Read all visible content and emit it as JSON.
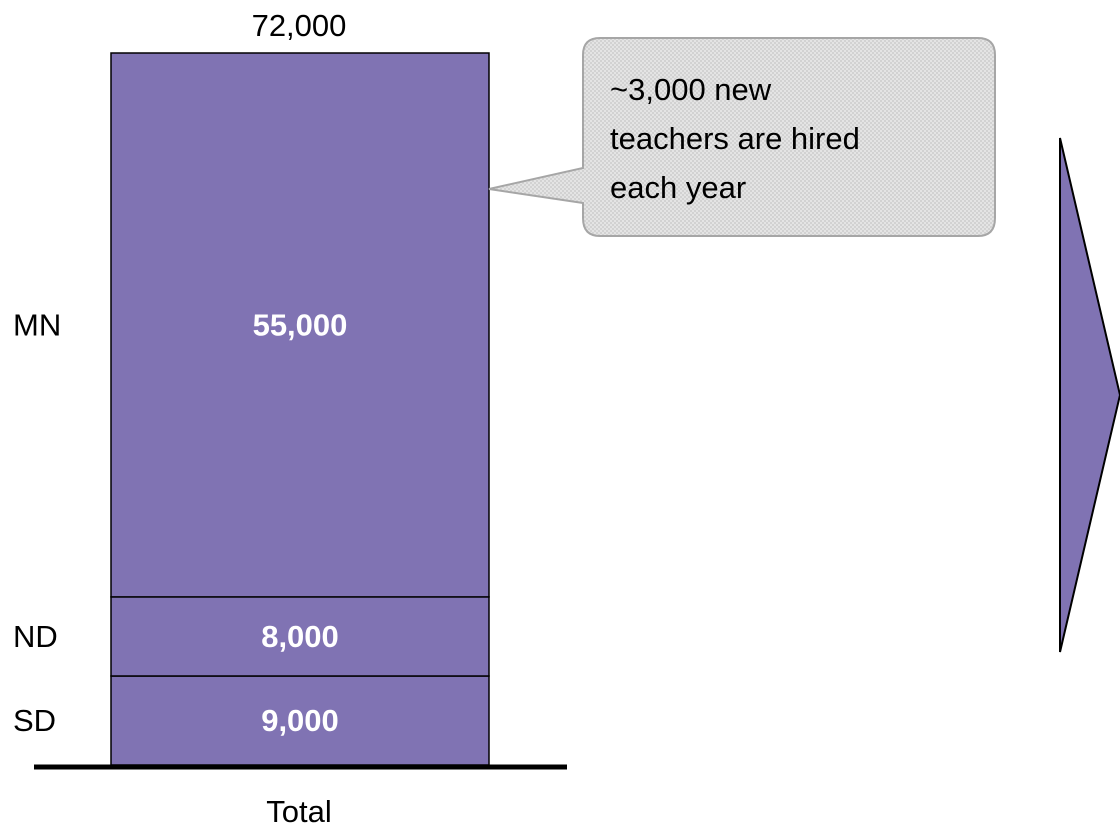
{
  "chart_data": {
    "type": "bar",
    "stacked": true,
    "categories": [
      "Total"
    ],
    "series": [
      {
        "name": "SD",
        "values": [
          9000
        ]
      },
      {
        "name": "ND",
        "values": [
          8000
        ]
      },
      {
        "name": "MN",
        "values": [
          55000
        ]
      }
    ],
    "segment_labels": [
      "9,000",
      "8,000",
      "55,000"
    ],
    "total_value": 72000,
    "total_label": "72,000",
    "title": "",
    "xlabel": "",
    "ylabel": "",
    "ylim": [
      0,
      72000
    ],
    "grid": false,
    "legend": "none",
    "bar_color": "#8073b3",
    "annotations": [
      {
        "text_lines": [
          "~3,000 new",
          "teachers are hired",
          "each year"
        ]
      }
    ]
  }
}
